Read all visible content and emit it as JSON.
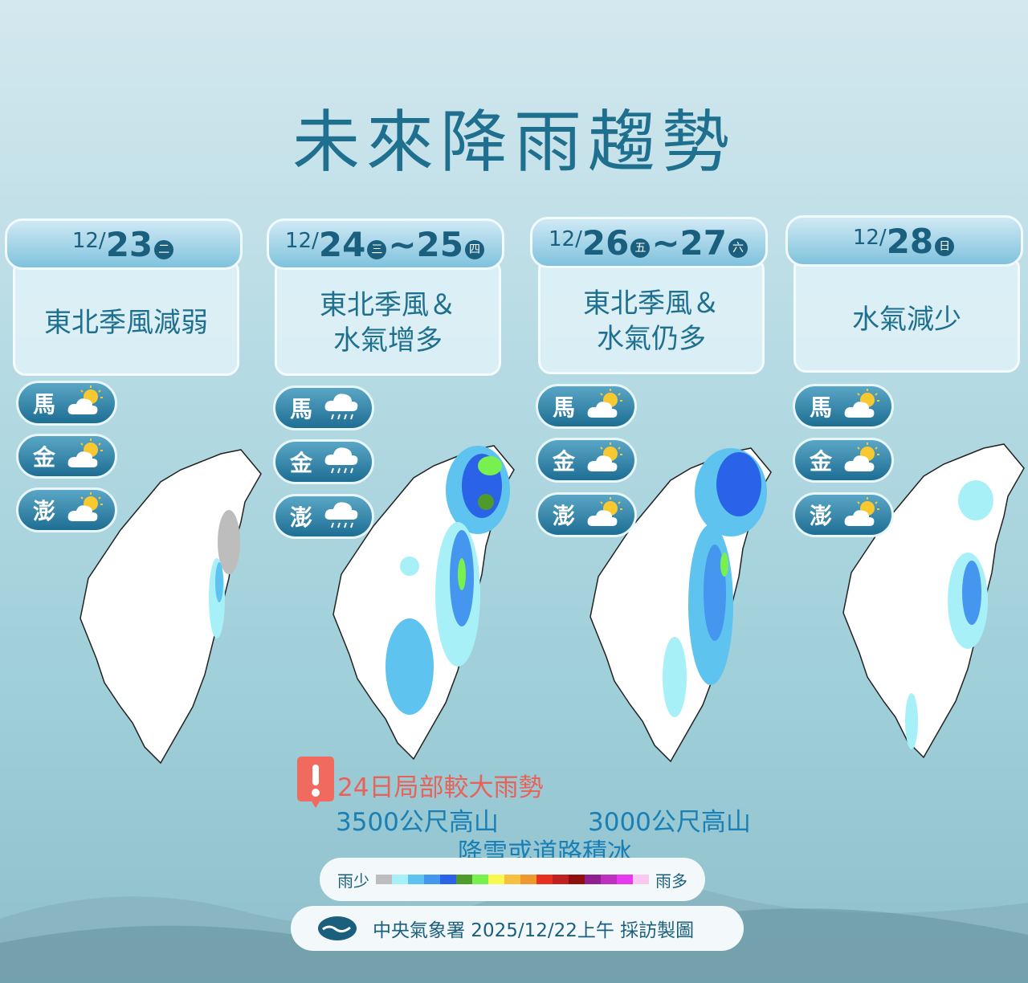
{
  "title": "未來降雨趨勢",
  "cards": [
    {
      "month": "12/",
      "day1": "23",
      "wd1": "二",
      "sep": "",
      "day2": "",
      "wd2": "",
      "desc1": "東北季風減弱",
      "desc2": ""
    },
    {
      "month": "12/",
      "day1": "24",
      "wd1": "三",
      "sep": "~",
      "day2": "25",
      "wd2": "四",
      "desc1": "東北季風＆",
      "desc2": "水氣增多"
    },
    {
      "month": "12/",
      "day1": "26",
      "wd1": "五",
      "sep": "~",
      "day2": "27",
      "wd2": "六",
      "desc1": "東北季風＆",
      "desc2": "水氣仍多"
    },
    {
      "month": "12/",
      "day1": "28",
      "wd1": "日",
      "sep": "",
      "day2": "",
      "wd2": "",
      "desc1": "水氣減少",
      "desc2": ""
    }
  ],
  "islands": [
    {
      "ma": "馬",
      "jin": "金",
      "peng": "澎",
      "icon": "partly-sunny-icon"
    },
    {
      "ma": "馬",
      "jin": "金",
      "peng": "澎",
      "icon": "rain-cloud-icon"
    },
    {
      "ma": "馬",
      "jin": "金",
      "peng": "澎",
      "icon": "partly-sunny-icon"
    },
    {
      "ma": "馬",
      "jin": "金",
      "peng": "澎",
      "icon": "partly-sunny-icon"
    }
  ],
  "warning": {
    "icon": "exclamation-icon",
    "text": "24日局部較大雨勢"
  },
  "snow": {
    "left": "3500公尺高山",
    "right": "3000公尺高山",
    "bottom": "降雪或道路積冰"
  },
  "legend": {
    "low": "雨少",
    "high": "雨多",
    "colors": [
      "#bdbdbd",
      "#a8f0f8",
      "#5ec4ef",
      "#4496ee",
      "#2a62e8",
      "#4e9a2a",
      "#78f050",
      "#f8f850",
      "#f8c040",
      "#f09830",
      "#e83020",
      "#c02020",
      "#901010",
      "#902090",
      "#c030c0",
      "#e838f0",
      "#f8c8f0"
    ]
  },
  "footer": {
    "logo": "cwa-logo",
    "text": "中央氣象署 2025/12/22上午 採訪製圖"
  },
  "colors": {
    "title": "#1f6f8f",
    "warning": "#e8625a",
    "snow": "#1a7fb5"
  }
}
